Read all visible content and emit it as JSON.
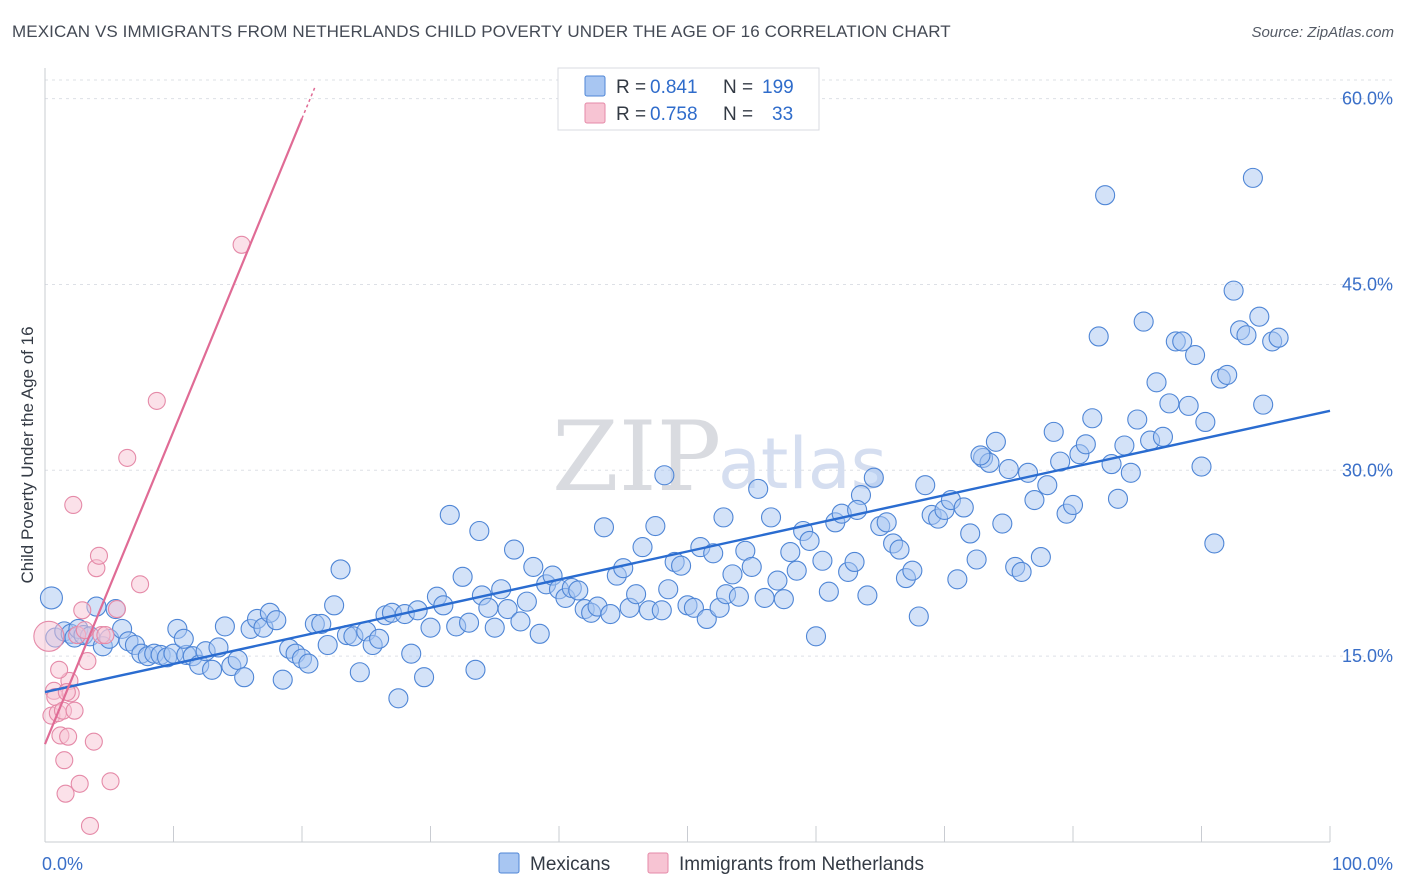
{
  "header": {
    "title": "MEXICAN VS IMMIGRANTS FROM NETHERLANDS CHILD POVERTY UNDER THE AGE OF 16 CORRELATION CHART",
    "source": "Source: ZipAtlas.com"
  },
  "watermark": {
    "zip": "ZIP",
    "atlas": "atlas"
  },
  "legend": {
    "rows": [
      {
        "r_label": "R = ",
        "r_value": "0.841",
        "n_label": "N = ",
        "n_value": "199",
        "color": "#a8c6f2",
        "stroke": "#5a8fd8"
      },
      {
        "r_label": "R = ",
        "r_value": "0.758",
        "n_label": "N = ",
        "n_value": "33",
        "color": "#f7bfd0",
        "stroke": "#e27d9f"
      }
    ]
  },
  "colors": {
    "blue_fill": "#a8c6f2",
    "blue_stroke": "#4f86d6",
    "blue_line": "#2a6cd0",
    "pink_fill": "#f7c4d3",
    "pink_stroke": "#e58aa8",
    "pink_line": "#e06b95",
    "grid": "#dde0e6",
    "tick_text": "#3a6fc8"
  },
  "chart_data": {
    "type": "scatter",
    "title": "MEXICAN VS IMMIGRANTS FROM NETHERLANDS CHILD POVERTY UNDER THE AGE OF 16 CORRELATION CHART",
    "xlabel": "",
    "ylabel": "Child Poverty Under the Age of 16",
    "xlim": [
      0,
      100
    ],
    "ylim": [
      0,
      61.5
    ],
    "x_tick_labels": {
      "min": "0.0%",
      "max": "100.0%"
    },
    "y_ticks": [
      15,
      30,
      45,
      60
    ],
    "y_tick_labels": [
      "15.0%",
      "30.0%",
      "45.0%",
      "60.0%"
    ],
    "grid": true,
    "legend_position": "top-center",
    "series": [
      {
        "name": "Mexicans",
        "R": 0.841,
        "N": 199,
        "trend": {
          "x": [
            0,
            100
          ],
          "y": [
            12.1,
            34.8
          ]
        },
        "points": [
          [
            0.5,
            19.7
          ],
          [
            0.8,
            16.5
          ],
          [
            1.5,
            17.0
          ],
          [
            2.0,
            16.8
          ],
          [
            2.3,
            16.5
          ],
          [
            2.6,
            17.2
          ],
          [
            3.0,
            16.7
          ],
          [
            3.5,
            16.6
          ],
          [
            4.0,
            19.0
          ],
          [
            4.5,
            15.8
          ],
          [
            5.0,
            16.4
          ],
          [
            5.5,
            18.8
          ],
          [
            6.0,
            17.2
          ],
          [
            6.5,
            16.2
          ],
          [
            7.0,
            15.9
          ],
          [
            7.5,
            15.2
          ],
          [
            8.0,
            15.0
          ],
          [
            8.5,
            15.2
          ],
          [
            9.0,
            15.1
          ],
          [
            9.5,
            14.9
          ],
          [
            10.0,
            15.2
          ],
          [
            10.3,
            17.2
          ],
          [
            11.0,
            15.1
          ],
          [
            11.5,
            15.0
          ],
          [
            12.0,
            14.3
          ],
          [
            12.5,
            15.4
          ],
          [
            13.0,
            13.9
          ],
          [
            13.5,
            15.7
          ],
          [
            14.0,
            17.4
          ],
          [
            14.5,
            14.2
          ],
          [
            15.0,
            14.7
          ],
          [
            15.5,
            13.3
          ],
          [
            16.0,
            17.2
          ],
          [
            16.5,
            18.0
          ],
          [
            17.0,
            17.3
          ],
          [
            17.5,
            18.5
          ],
          [
            18.0,
            17.9
          ],
          [
            18.5,
            13.1
          ],
          [
            19.0,
            15.6
          ],
          [
            19.5,
            15.2
          ],
          [
            20.0,
            14.8
          ],
          [
            20.5,
            14.4
          ],
          [
            21.0,
            17.6
          ],
          [
            21.5,
            17.6
          ],
          [
            22.0,
            15.9
          ],
          [
            22.5,
            19.1
          ],
          [
            23.0,
            22.0
          ],
          [
            23.5,
            16.7
          ],
          [
            24.0,
            16.6
          ],
          [
            24.5,
            13.7
          ],
          [
            25.0,
            17.0
          ],
          [
            25.5,
            15.9
          ],
          [
            26.0,
            16.4
          ],
          [
            26.5,
            18.3
          ],
          [
            27.0,
            18.5
          ],
          [
            27.5,
            11.6
          ],
          [
            28.0,
            18.4
          ],
          [
            28.5,
            15.2
          ],
          [
            29.0,
            18.7
          ],
          [
            29.5,
            13.3
          ],
          [
            30.0,
            17.3
          ],
          [
            30.5,
            19.8
          ],
          [
            31.0,
            19.1
          ],
          [
            31.5,
            26.4
          ],
          [
            32.0,
            17.4
          ],
          [
            32.5,
            21.4
          ],
          [
            33.0,
            17.7
          ],
          [
            33.5,
            13.9
          ],
          [
            34.0,
            19.9
          ],
          [
            34.5,
            18.9
          ],
          [
            35.0,
            17.3
          ],
          [
            35.5,
            20.4
          ],
          [
            36.0,
            18.8
          ],
          [
            36.5,
            23.6
          ],
          [
            37.0,
            17.8
          ],
          [
            37.5,
            19.4
          ],
          [
            38.0,
            22.2
          ],
          [
            38.5,
            16.8
          ],
          [
            39.0,
            20.8
          ],
          [
            39.5,
            21.5
          ],
          [
            40.0,
            20.4
          ],
          [
            40.5,
            19.7
          ],
          [
            41.0,
            20.5
          ],
          [
            41.5,
            20.3
          ],
          [
            42.0,
            18.8
          ],
          [
            42.5,
            18.5
          ],
          [
            43.0,
            19.0
          ],
          [
            43.5,
            25.4
          ],
          [
            44.0,
            18.4
          ],
          [
            44.5,
            21.5
          ],
          [
            45.0,
            22.1
          ],
          [
            45.5,
            18.9
          ],
          [
            46.0,
            20.0
          ],
          [
            46.5,
            23.8
          ],
          [
            47.0,
            18.7
          ],
          [
            47.5,
            25.5
          ],
          [
            48.0,
            18.7
          ],
          [
            48.5,
            20.4
          ],
          [
            49.0,
            22.6
          ],
          [
            49.5,
            22.3
          ],
          [
            50.0,
            19.1
          ],
          [
            50.5,
            18.9
          ],
          [
            51.0,
            23.8
          ],
          [
            51.5,
            18.0
          ],
          [
            52.0,
            23.3
          ],
          [
            52.5,
            18.9
          ],
          [
            53.0,
            20.0
          ],
          [
            53.5,
            21.6
          ],
          [
            54.0,
            19.8
          ],
          [
            54.5,
            23.5
          ],
          [
            55.0,
            22.2
          ],
          [
            55.5,
            28.5
          ],
          [
            56.0,
            19.7
          ],
          [
            56.5,
            26.2
          ],
          [
            57.0,
            21.1
          ],
          [
            57.5,
            19.6
          ],
          [
            58.0,
            23.4
          ],
          [
            58.5,
            21.9
          ],
          [
            59.0,
            25.1
          ],
          [
            59.5,
            24.3
          ],
          [
            60.0,
            16.6
          ],
          [
            60.5,
            22.7
          ],
          [
            61.0,
            20.2
          ],
          [
            61.5,
            25.8
          ],
          [
            62.0,
            26.5
          ],
          [
            62.5,
            21.8
          ],
          [
            63.0,
            22.6
          ],
          [
            63.5,
            28.0
          ],
          [
            64.0,
            19.9
          ],
          [
            64.5,
            29.4
          ],
          [
            65.0,
            25.5
          ],
          [
            65.5,
            25.8
          ],
          [
            66.0,
            24.1
          ],
          [
            66.5,
            23.6
          ],
          [
            67.0,
            21.3
          ],
          [
            67.5,
            21.9
          ],
          [
            68.0,
            18.2
          ],
          [
            68.5,
            28.8
          ],
          [
            69.0,
            26.4
          ],
          [
            69.5,
            26.1
          ],
          [
            70.0,
            26.8
          ],
          [
            70.5,
            27.6
          ],
          [
            71.0,
            21.2
          ],
          [
            71.5,
            27.0
          ],
          [
            72.0,
            24.9
          ],
          [
            72.5,
            22.8
          ],
          [
            73.0,
            31.0
          ],
          [
            73.5,
            30.6
          ],
          [
            74.0,
            32.3
          ],
          [
            74.5,
            25.7
          ],
          [
            75.0,
            30.1
          ],
          [
            75.5,
            22.2
          ],
          [
            76.0,
            21.8
          ],
          [
            76.5,
            29.8
          ],
          [
            77.0,
            27.6
          ],
          [
            77.5,
            23.0
          ],
          [
            78.0,
            28.8
          ],
          [
            78.5,
            33.1
          ],
          [
            79.0,
            30.7
          ],
          [
            79.5,
            26.5
          ],
          [
            80.0,
            27.2
          ],
          [
            80.5,
            31.3
          ],
          [
            81.0,
            32.1
          ],
          [
            81.5,
            34.2
          ],
          [
            82.0,
            40.8
          ],
          [
            82.5,
            52.2
          ],
          [
            83.0,
            30.5
          ],
          [
            83.5,
            27.7
          ],
          [
            84.0,
            32.0
          ],
          [
            84.5,
            29.8
          ],
          [
            85.0,
            34.1
          ],
          [
            85.5,
            42.0
          ],
          [
            86.0,
            32.4
          ],
          [
            86.5,
            37.1
          ],
          [
            87.0,
            32.7
          ],
          [
            87.5,
            35.4
          ],
          [
            88.0,
            40.4
          ],
          [
            88.5,
            40.4
          ],
          [
            89.0,
            35.2
          ],
          [
            89.5,
            39.3
          ],
          [
            90.0,
            30.3
          ],
          [
            90.3,
            33.9
          ],
          [
            91.0,
            24.1
          ],
          [
            91.5,
            37.4
          ],
          [
            92.0,
            37.7
          ],
          [
            92.5,
            44.5
          ],
          [
            93.0,
            41.3
          ],
          [
            93.5,
            40.9
          ],
          [
            94.0,
            53.6
          ],
          [
            94.5,
            42.4
          ],
          [
            94.8,
            35.3
          ],
          [
            95.5,
            40.4
          ],
          [
            96.0,
            40.7
          ],
          [
            72.8,
            31.2
          ],
          [
            63.2,
            26.8
          ],
          [
            52.8,
            26.2
          ],
          [
            48.2,
            29.6
          ],
          [
            33.8,
            25.1
          ],
          [
            10.8,
            16.4
          ]
        ]
      },
      {
        "name": "Immigrants from Netherlands",
        "R": 0.758,
        "N": 33,
        "trend": {
          "x": [
            0,
            20
          ],
          "y": [
            7.9,
            58.4
          ]
        },
        "trend_dashed": {
          "x": [
            20,
            21
          ],
          "y": [
            58.4,
            60.9
          ]
        },
        "points": [
          [
            0.3,
            16.6
          ],
          [
            0.5,
            10.2
          ],
          [
            0.7,
            12.2
          ],
          [
            0.8,
            11.7
          ],
          [
            1.0,
            10.4
          ],
          [
            1.2,
            8.6
          ],
          [
            1.4,
            10.6
          ],
          [
            1.5,
            6.6
          ],
          [
            1.6,
            3.9
          ],
          [
            1.8,
            8.5
          ],
          [
            1.9,
            13.0
          ],
          [
            2.0,
            12.0
          ],
          [
            2.2,
            27.2
          ],
          [
            2.3,
            10.6
          ],
          [
            2.5,
            16.7
          ],
          [
            2.7,
            4.7
          ],
          [
            2.9,
            18.7
          ],
          [
            3.1,
            17.1
          ],
          [
            3.3,
            14.6
          ],
          [
            3.5,
            1.3
          ],
          [
            3.8,
            8.1
          ],
          [
            4.0,
            22.1
          ],
          [
            4.2,
            23.1
          ],
          [
            4.4,
            16.7
          ],
          [
            4.7,
            16.7
          ],
          [
            5.1,
            4.9
          ],
          [
            5.6,
            18.8
          ],
          [
            6.4,
            31.0
          ],
          [
            7.4,
            20.8
          ],
          [
            8.7,
            35.6
          ],
          [
            1.1,
            13.9
          ],
          [
            1.7,
            12.1
          ],
          [
            15.3,
            48.2
          ]
        ]
      }
    ]
  },
  "bottom_legend": {
    "items": [
      {
        "label": "Mexicans"
      },
      {
        "label": "Immigrants from Netherlands"
      }
    ]
  }
}
